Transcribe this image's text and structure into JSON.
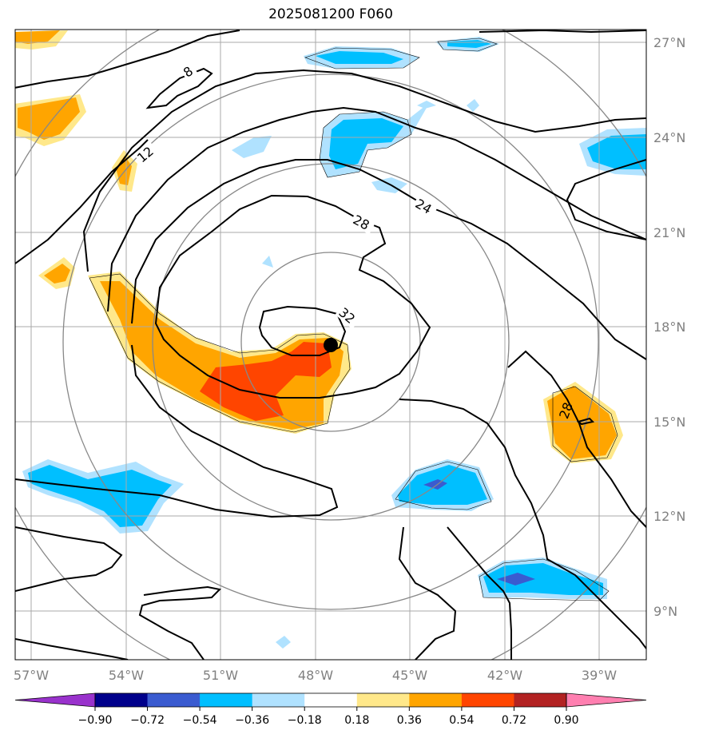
{
  "title": "2025081200 F060",
  "lon_labels": [
    "57°W",
    "54°W",
    "51°W",
    "48°W",
    "45°W",
    "42°W",
    "39°W"
  ],
  "lat_labels": [
    "27°N",
    "24°N",
    "21°N",
    "18°N",
    "15°N",
    "12°N",
    "9°N"
  ],
  "contour_labels": [
    "8",
    "12",
    "24",
    "28",
    "32",
    "28"
  ],
  "colorbar": {
    "ticks": [
      "−0.90",
      "−0.72",
      "−0.54",
      "−0.36",
      "−0.18",
      "0.18",
      "0.36",
      "0.54",
      "0.72",
      "0.90"
    ],
    "colors": [
      "#9932cc",
      "#00008b",
      "#3a5bd0",
      "#00bfff",
      "#b0e2ff",
      "#ffffff",
      "#ffe88a",
      "#ffa500",
      "#ff4500",
      "#b22222",
      "#ff7fb0"
    ]
  },
  "center_marker": {
    "lon": "47.6°W",
    "lat": "17.5°N"
  },
  "colors": {
    "grid": "#aaaaaa",
    "rings": "#888888",
    "contour": "#000000"
  }
}
